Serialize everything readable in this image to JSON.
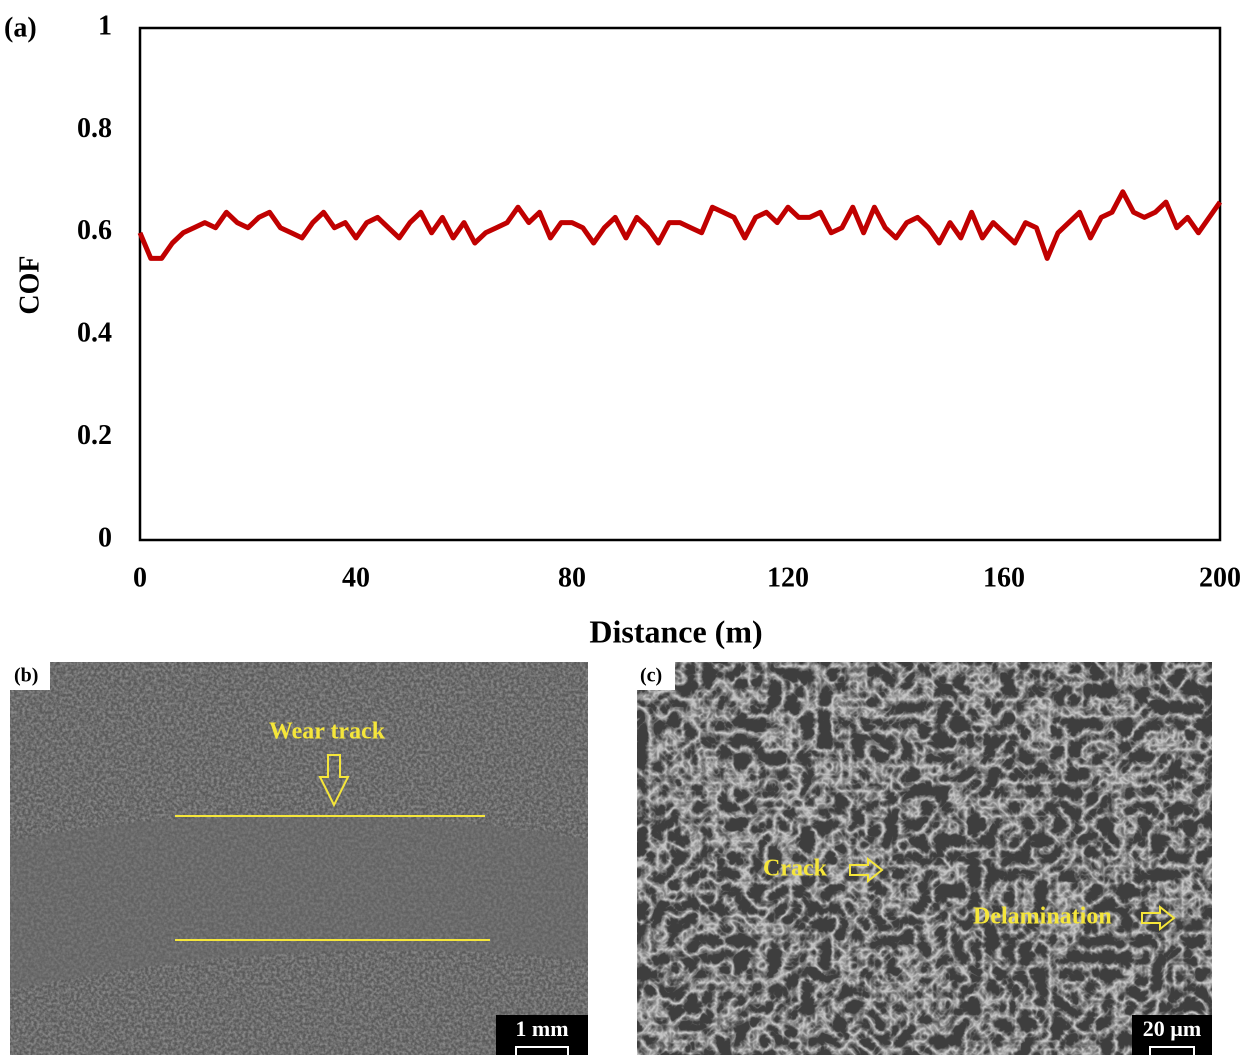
{
  "chart_data": {
    "type": "line",
    "panel_label": "(a)",
    "ylabel": "COF",
    "xlabel": "Distance (m)",
    "x": [
      0,
      2,
      4,
      6,
      8,
      10,
      12,
      14,
      16,
      18,
      20,
      22,
      24,
      26,
      28,
      30,
      32,
      34,
      36,
      38,
      40,
      42,
      44,
      46,
      48,
      50,
      52,
      54,
      56,
      58,
      60,
      62,
      64,
      66,
      68,
      70,
      72,
      74,
      76,
      78,
      80,
      82,
      84,
      86,
      88,
      90,
      92,
      94,
      96,
      98,
      100,
      102,
      104,
      106,
      108,
      110,
      112,
      114,
      116,
      118,
      120,
      122,
      124,
      126,
      128,
      130,
      132,
      134,
      136,
      138,
      140,
      142,
      144,
      146,
      148,
      150,
      152,
      154,
      156,
      158,
      160,
      162,
      164,
      166,
      168,
      170,
      172,
      174,
      176,
      178,
      180,
      182,
      184,
      186,
      188,
      190,
      192,
      194,
      196,
      198,
      200
    ],
    "values": [
      0.6,
      0.55,
      0.55,
      0.58,
      0.6,
      0.61,
      0.62,
      0.61,
      0.64,
      0.62,
      0.61,
      0.63,
      0.64,
      0.61,
      0.6,
      0.59,
      0.62,
      0.64,
      0.61,
      0.62,
      0.59,
      0.62,
      0.63,
      0.61,
      0.59,
      0.62,
      0.64,
      0.6,
      0.63,
      0.59,
      0.62,
      0.58,
      0.6,
      0.61,
      0.62,
      0.65,
      0.62,
      0.64,
      0.59,
      0.62,
      0.62,
      0.61,
      0.58,
      0.61,
      0.63,
      0.59,
      0.63,
      0.61,
      0.58,
      0.62,
      0.62,
      0.61,
      0.6,
      0.65,
      0.64,
      0.63,
      0.59,
      0.63,
      0.64,
      0.62,
      0.65,
      0.63,
      0.63,
      0.64,
      0.6,
      0.61,
      0.65,
      0.6,
      0.65,
      0.61,
      0.59,
      0.62,
      0.63,
      0.61,
      0.58,
      0.62,
      0.59,
      0.64,
      0.59,
      0.62,
      0.6,
      0.58,
      0.62,
      0.61,
      0.55,
      0.6,
      0.62,
      0.64,
      0.59,
      0.63,
      0.64,
      0.68,
      0.64,
      0.63,
      0.64,
      0.66,
      0.61,
      0.63,
      0.6,
      0.63,
      0.66
    ],
    "color": "#c00000",
    "xlim": [
      0,
      200
    ],
    "xticks": [
      0,
      40,
      80,
      120,
      160,
      200
    ],
    "ylim": [
      0,
      1
    ],
    "yticks": [
      0,
      0.2,
      0.4,
      0.6,
      0.8,
      1
    ]
  },
  "images": [
    {
      "label": "(b)",
      "annotation": "Wear track",
      "scale_bar": "1 mm"
    },
    {
      "label": "(c)",
      "annotations": [
        "Crack",
        "Delamination"
      ],
      "scale_bar": "20 µm"
    }
  ]
}
